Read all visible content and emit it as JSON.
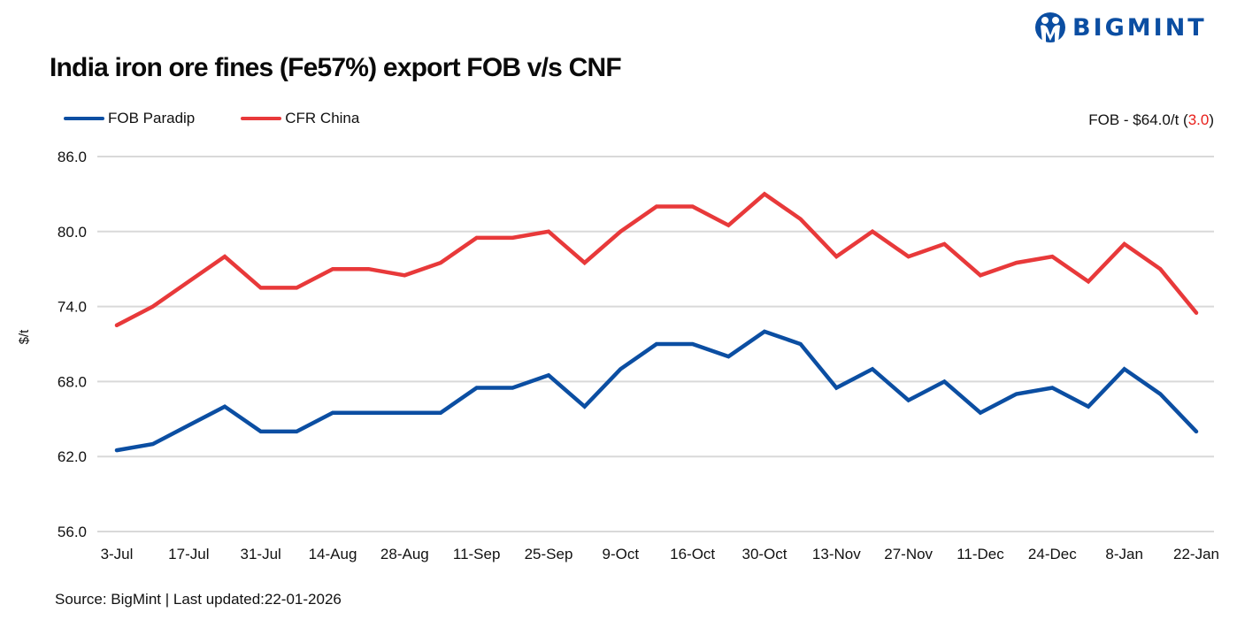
{
  "header": {
    "title": "India iron ore fines (Fe57%) export FOB v/s CNF",
    "logo_text": "BIGMINT",
    "logo_icon": "bigmint-people-icon"
  },
  "legend": [
    {
      "label": "FOB Paradip",
      "color": "#0b4ea2"
    },
    {
      "label": "CFR China",
      "color": "#e8393a"
    }
  ],
  "fob_note": {
    "prefix": "FOB - $64.0/t (",
    "change": "3.0",
    "suffix": ")",
    "change_color": "#e8201b"
  },
  "footer": {
    "source": "Source: BigMint | Last updated:22-01-2026"
  },
  "chart_data": {
    "type": "line",
    "title": "India iron ore fines (Fe57%) export FOB v/s CNF",
    "xlabel": "",
    "ylabel": "$/t",
    "ylim": [
      56,
      86
    ],
    "yticks": [
      "86.0",
      "80.0",
      "74.0",
      "68.0",
      "62.0",
      "56.0"
    ],
    "xtick_labels": [
      "3-Jul",
      "17-Jul",
      "31-Jul",
      "14-Aug",
      "28-Aug",
      "11-Sep",
      "25-Sep",
      "9-Oct",
      "16-Oct",
      "30-Oct",
      "13-Nov",
      "27-Nov",
      "11-Dec",
      "24-Dec",
      "8-Jan",
      "22-Jan"
    ],
    "grid": true,
    "legend_position": "top-left",
    "x_count": 31,
    "series": [
      {
        "name": "FOB Paradip",
        "color": "#0b4ea2",
        "values": [
          62.5,
          63.0,
          64.5,
          66.0,
          64.0,
          64.0,
          65.5,
          65.5,
          65.5,
          65.5,
          67.5,
          67.5,
          68.5,
          66.0,
          69.0,
          71.0,
          71.0,
          70.0,
          72.0,
          71.0,
          67.5,
          69.0,
          66.5,
          68.0,
          65.5,
          67.0,
          67.5,
          66.0,
          69.0,
          67.0,
          64.0
        ]
      },
      {
        "name": "CFR China",
        "color": "#e8393a",
        "values": [
          72.5,
          74.0,
          76.0,
          78.0,
          75.5,
          75.5,
          77.0,
          77.0,
          76.5,
          77.5,
          79.5,
          79.5,
          80.0,
          77.5,
          80.0,
          82.0,
          82.0,
          80.5,
          83.0,
          81.0,
          78.0,
          80.0,
          78.0,
          79.0,
          76.5,
          77.5,
          78.0,
          76.0,
          79.0,
          77.0,
          73.5
        ]
      }
    ]
  }
}
